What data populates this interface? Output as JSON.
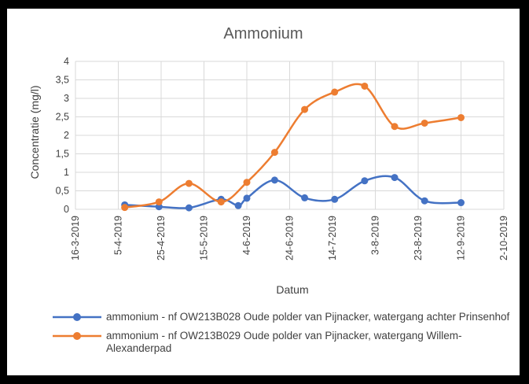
{
  "chart_data": {
    "type": "line",
    "title": "Ammonium",
    "xlabel": "Datum",
    "ylabel": "Concentratie (mg/l)",
    "ylim": [
      0,
      4
    ],
    "yticks": [
      "0",
      "0,5",
      "1",
      "1,5",
      "2",
      "2,5",
      "3",
      "3,5",
      "4"
    ],
    "xlim": [
      "2019-03-16",
      "2019-10-02"
    ],
    "xticks": [
      "16-3-2019",
      "5-4-2019",
      "25-4-2019",
      "15-5-2019",
      "4-6-2019",
      "24-6-2019",
      "14-7-2019",
      "3-8-2019",
      "23-8-2019",
      "12-9-2019",
      "2-10-2019"
    ],
    "grid": true,
    "legend_position": "bottom",
    "series": [
      {
        "name": "ammonium - nf OW213B028 Oude polder van Pijnacker, watergang achter Prinsenhof",
        "color": "#4472C4",
        "points": [
          {
            "x": "2019-04-08",
            "y": 0.12
          },
          {
            "x": "2019-04-24",
            "y": 0.07
          },
          {
            "x": "2019-05-08",
            "y": 0.04
          },
          {
            "x": "2019-05-23",
            "y": 0.27
          },
          {
            "x": "2019-05-31",
            "y": 0.1
          },
          {
            "x": "2019-06-04",
            "y": 0.3
          },
          {
            "x": "2019-06-17",
            "y": 0.79
          },
          {
            "x": "2019-07-01",
            "y": 0.31
          },
          {
            "x": "2019-07-15",
            "y": 0.27
          },
          {
            "x": "2019-07-29",
            "y": 0.77
          },
          {
            "x": "2019-08-12",
            "y": 0.86
          },
          {
            "x": "2019-08-26",
            "y": 0.23
          },
          {
            "x": "2019-09-12",
            "y": 0.18
          }
        ]
      },
      {
        "name": "ammonium - nf OW213B029 Oude polder van Pijnacker, watergang Willem-Alexanderpad",
        "color": "#ED7D31",
        "points": [
          {
            "x": "2019-04-08",
            "y": 0.05
          },
          {
            "x": "2019-04-24",
            "y": 0.2
          },
          {
            "x": "2019-05-08",
            "y": 0.7
          },
          {
            "x": "2019-05-23",
            "y": 0.2
          },
          {
            "x": "2019-06-04",
            "y": 0.73
          },
          {
            "x": "2019-06-17",
            "y": 1.54
          },
          {
            "x": "2019-07-01",
            "y": 2.7
          },
          {
            "x": "2019-07-15",
            "y": 3.17
          },
          {
            "x": "2019-07-29",
            "y": 3.33
          },
          {
            "x": "2019-08-12",
            "y": 2.24
          },
          {
            "x": "2019-08-26",
            "y": 2.33
          },
          {
            "x": "2019-09-12",
            "y": 2.48
          }
        ]
      }
    ]
  }
}
